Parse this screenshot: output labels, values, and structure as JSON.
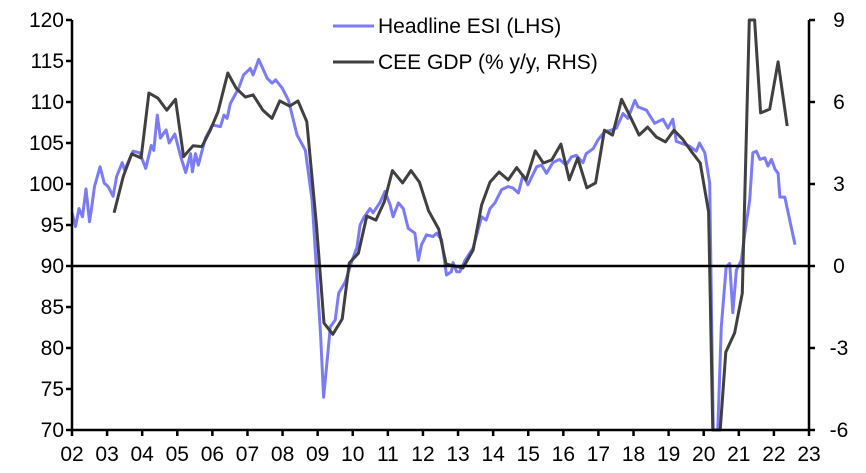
{
  "chart_data": {
    "type": "line",
    "title": "",
    "legend_placement": "top-center",
    "grid": false,
    "x_ticks": [
      "02",
      "03",
      "04",
      "05",
      "06",
      "07",
      "08",
      "09",
      "10",
      "11",
      "12",
      "13",
      "14",
      "15",
      "16",
      "17",
      "18",
      "19",
      "20",
      "21",
      "22",
      "23"
    ],
    "x_range": [
      2002,
      2023
    ],
    "y_left": {
      "range": [
        70,
        120
      ],
      "ticks": [
        "70",
        "75",
        "80",
        "85",
        "90",
        "95",
        "100",
        "105",
        "110",
        "115",
        "120"
      ]
    },
    "y_right": {
      "range": [
        -6,
        9
      ],
      "ticks": [
        "-6",
        "-3",
        "0",
        "3",
        "6",
        "9"
      ]
    },
    "reference_line": {
      "axis": "right",
      "value": 0
    },
    "series": [
      {
        "name": "Headline ESI (LHS)",
        "axis": "left",
        "color": "#7b7bf7",
        "points": [
          [
            2002.0,
            96.5
          ],
          [
            2002.1,
            94.8
          ],
          [
            2002.2,
            97
          ],
          [
            2002.3,
            96
          ],
          [
            2002.4,
            99.4
          ],
          [
            2002.5,
            95.4
          ],
          [
            2002.55,
            96.8
          ],
          [
            2002.64,
            99.7
          ],
          [
            2002.8,
            102.1
          ],
          [
            2002.92,
            100.1
          ],
          [
            2003.03,
            99.7
          ],
          [
            2003.17,
            98.5
          ],
          [
            2003.27,
            100.9
          ],
          [
            2003.43,
            102.6
          ],
          [
            2003.5,
            101.7
          ],
          [
            2003.74,
            104
          ],
          [
            2003.93,
            103.8
          ],
          [
            2004.1,
            101.9
          ],
          [
            2004.26,
            104.7
          ],
          [
            2004.33,
            104.1
          ],
          [
            2004.43,
            108.4
          ],
          [
            2004.52,
            105.6
          ],
          [
            2004.68,
            106.6
          ],
          [
            2004.77,
            105
          ],
          [
            2004.93,
            106.1
          ],
          [
            2005.1,
            103.3
          ],
          [
            2005.24,
            101.4
          ],
          [
            2005.38,
            103.7
          ],
          [
            2005.43,
            101.5
          ],
          [
            2005.52,
            103.7
          ],
          [
            2005.6,
            102.3
          ],
          [
            2005.8,
            105.6
          ],
          [
            2006.0,
            107.2
          ],
          [
            2006.23,
            107
          ],
          [
            2006.33,
            108.4
          ],
          [
            2006.42,
            108
          ],
          [
            2006.51,
            109.8
          ],
          [
            2006.75,
            111.7
          ],
          [
            2006.89,
            113.3
          ],
          [
            2007.08,
            114.1
          ],
          [
            2007.16,
            113.3
          ],
          [
            2007.32,
            115.2
          ],
          [
            2007.56,
            112.9
          ],
          [
            2007.7,
            112.3
          ],
          [
            2007.8,
            112.7
          ],
          [
            2007.99,
            111.7
          ],
          [
            2008.17,
            110.2
          ],
          [
            2008.41,
            106
          ],
          [
            2008.65,
            104.1
          ],
          [
            2008.84,
            98
          ],
          [
            2009.08,
            81.8
          ],
          [
            2009.17,
            74
          ],
          [
            2009.3,
            79.8
          ],
          [
            2009.36,
            82.6
          ],
          [
            2009.5,
            83.4
          ],
          [
            2009.6,
            86.7
          ],
          [
            2009.79,
            88.1
          ],
          [
            2009.98,
            90.7
          ],
          [
            2010.12,
            92.3
          ],
          [
            2010.21,
            95
          ],
          [
            2010.3,
            95.8
          ],
          [
            2010.49,
            97
          ],
          [
            2010.58,
            96.5
          ],
          [
            2010.77,
            97.7
          ],
          [
            2010.92,
            99.1
          ],
          [
            2011.06,
            97.5
          ],
          [
            2011.15,
            96
          ],
          [
            2011.3,
            97.7
          ],
          [
            2011.44,
            97
          ],
          [
            2011.58,
            94.6
          ],
          [
            2011.77,
            94
          ],
          [
            2011.87,
            90.7
          ],
          [
            2011.96,
            92.6
          ],
          [
            2012.1,
            93.8
          ],
          [
            2012.29,
            93.6
          ],
          [
            2012.39,
            94
          ],
          [
            2012.53,
            93.2
          ],
          [
            2012.67,
            88.9
          ],
          [
            2012.81,
            89.3
          ],
          [
            2012.86,
            90.4
          ],
          [
            2012.96,
            89.3
          ],
          [
            2013.05,
            89.3
          ],
          [
            2013.2,
            90.7
          ],
          [
            2013.43,
            92.2
          ],
          [
            2013.67,
            96
          ],
          [
            2013.8,
            95.6
          ],
          [
            2013.91,
            97
          ],
          [
            2014.05,
            97.7
          ],
          [
            2014.24,
            99.3
          ],
          [
            2014.43,
            99.7
          ],
          [
            2014.57,
            99.5
          ],
          [
            2014.72,
            98.9
          ],
          [
            2014.85,
            101.1
          ],
          [
            2014.99,
            99.9
          ],
          [
            2015.24,
            102.1
          ],
          [
            2015.38,
            102.3
          ],
          [
            2015.52,
            101.3
          ],
          [
            2015.7,
            102.6
          ],
          [
            2015.89,
            103
          ],
          [
            2016.08,
            102.3
          ],
          [
            2016.23,
            103.3
          ],
          [
            2016.37,
            103.5
          ],
          [
            2016.56,
            102.6
          ],
          [
            2016.65,
            103.7
          ],
          [
            2016.85,
            104.3
          ],
          [
            2016.99,
            105.4
          ],
          [
            2017.18,
            106.4
          ],
          [
            2017.32,
            106.5
          ],
          [
            2017.51,
            106.8
          ],
          [
            2017.7,
            108.6
          ],
          [
            2017.84,
            108
          ],
          [
            2018.04,
            110.2
          ],
          [
            2018.13,
            109.4
          ],
          [
            2018.37,
            109
          ],
          [
            2018.6,
            107.4
          ],
          [
            2018.84,
            107.9
          ],
          [
            2018.98,
            106.8
          ],
          [
            2019.12,
            107.9
          ],
          [
            2019.22,
            105.2
          ],
          [
            2019.41,
            104.9
          ],
          [
            2019.6,
            104.6
          ],
          [
            2019.79,
            104
          ],
          [
            2019.88,
            105
          ],
          [
            2020.03,
            103.8
          ],
          [
            2020.17,
            100.1
          ],
          [
            2020.27,
            62
          ],
          [
            2020.4,
            62
          ],
          [
            2020.5,
            82.6
          ],
          [
            2020.64,
            89.9
          ],
          [
            2020.74,
            90.3
          ],
          [
            2020.83,
            84.3
          ],
          [
            2020.93,
            89.5
          ],
          [
            2021.07,
            90.7
          ],
          [
            2021.21,
            95.2
          ],
          [
            2021.31,
            98
          ],
          [
            2021.4,
            103.8
          ],
          [
            2021.5,
            104
          ],
          [
            2021.6,
            103
          ],
          [
            2021.74,
            103.2
          ],
          [
            2021.83,
            102.2
          ],
          [
            2021.93,
            103
          ],
          [
            2022.03,
            101.8
          ],
          [
            2022.12,
            101.3
          ],
          [
            2022.17,
            98.4
          ],
          [
            2022.31,
            98.4
          ],
          [
            2022.6,
            92.6
          ]
        ]
      },
      {
        "name": "CEE GDP (% y/y, RHS)",
        "axis": "right",
        "color": "#404040",
        "points": [
          [
            2003.2,
            1.95
          ],
          [
            2003.46,
            3.27
          ],
          [
            2003.7,
            4.1
          ],
          [
            2003.97,
            3.95
          ],
          [
            2004.19,
            6.33
          ],
          [
            2004.45,
            6.14
          ],
          [
            2004.7,
            5.7
          ],
          [
            2004.95,
            6.1
          ],
          [
            2005.18,
            4.0
          ],
          [
            2005.45,
            4.4
          ],
          [
            2005.7,
            4.37
          ],
          [
            2005.94,
            4.97
          ],
          [
            2006.16,
            5.64
          ],
          [
            2006.44,
            7.06
          ],
          [
            2006.68,
            6.5
          ],
          [
            2006.94,
            6.18
          ],
          [
            2007.16,
            6.26
          ],
          [
            2007.44,
            5.7
          ],
          [
            2007.7,
            5.4
          ],
          [
            2007.92,
            6.04
          ],
          [
            2008.2,
            5.85
          ],
          [
            2008.44,
            6.04
          ],
          [
            2008.69,
            5.28
          ],
          [
            2008.96,
            1.57
          ],
          [
            2009.18,
            -2.09
          ],
          [
            2009.43,
            -2.5
          ],
          [
            2009.7,
            -1.94
          ],
          [
            2009.9,
            0.11
          ],
          [
            2010.16,
            0.47
          ],
          [
            2010.4,
            1.83
          ],
          [
            2010.66,
            1.68
          ],
          [
            2010.9,
            2.35
          ],
          [
            2011.13,
            3.49
          ],
          [
            2011.42,
            3.04
          ],
          [
            2011.66,
            3.49
          ],
          [
            2011.9,
            3.07
          ],
          [
            2012.16,
            2.02
          ],
          [
            2012.45,
            1.35
          ],
          [
            2012.66,
            0.07
          ],
          [
            2012.9,
            0.0
          ],
          [
            2013.14,
            -0.07
          ],
          [
            2013.43,
            0.58
          ],
          [
            2013.67,
            2.23
          ],
          [
            2013.91,
            3.07
          ],
          [
            2014.17,
            3.44
          ],
          [
            2014.43,
            3.15
          ],
          [
            2014.67,
            3.6
          ],
          [
            2014.94,
            3.15
          ],
          [
            2015.2,
            4.21
          ],
          [
            2015.43,
            3.77
          ],
          [
            2015.67,
            3.88
          ],
          [
            2015.93,
            4.46
          ],
          [
            2016.17,
            3.15
          ],
          [
            2016.41,
            3.95
          ],
          [
            2016.67,
            2.86
          ],
          [
            2016.92,
            3.04
          ],
          [
            2017.17,
            4.97
          ],
          [
            2017.4,
            4.79
          ],
          [
            2017.66,
            6.1
          ],
          [
            2017.91,
            5.45
          ],
          [
            2018.16,
            4.79
          ],
          [
            2018.4,
            5.08
          ],
          [
            2018.65,
            4.72
          ],
          [
            2018.91,
            4.54
          ],
          [
            2019.15,
            4.97
          ],
          [
            2019.4,
            4.64
          ],
          [
            2019.66,
            4.17
          ],
          [
            2019.9,
            3.77
          ],
          [
            2020.14,
            1.98
          ],
          [
            2020.26,
            -10
          ],
          [
            2020.47,
            -8
          ],
          [
            2020.63,
            -3.15
          ],
          [
            2020.88,
            -2.45
          ],
          [
            2021.1,
            -0.99
          ],
          [
            2021.3,
            13
          ],
          [
            2021.45,
            10.5
          ],
          [
            2021.62,
            5.6
          ],
          [
            2021.88,
            5.74
          ],
          [
            2022.12,
            7.47
          ],
          [
            2022.38,
            5.12
          ]
        ]
      }
    ]
  }
}
